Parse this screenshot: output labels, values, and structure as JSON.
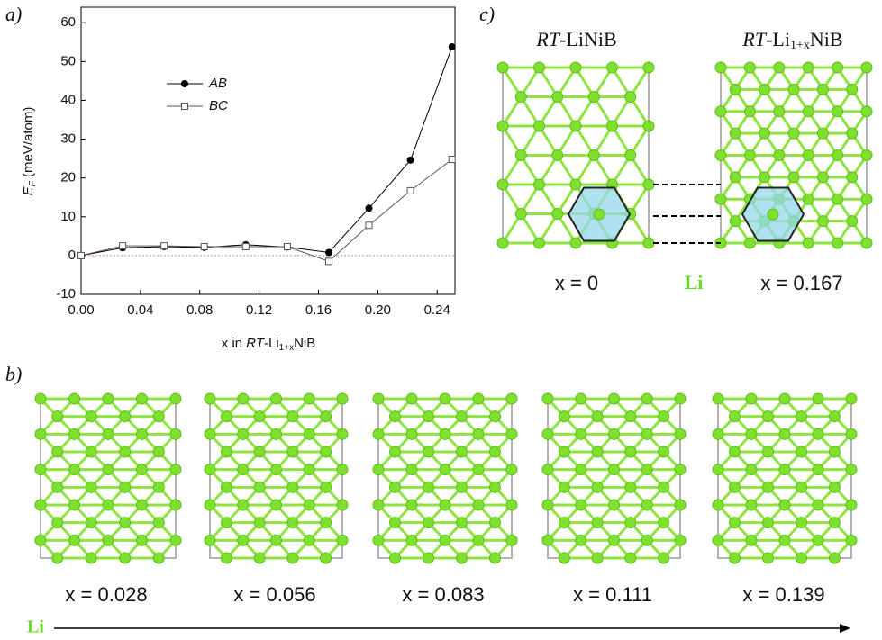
{
  "chart_data": {
    "type": "line",
    "xlabel": [
      "x in ",
      "RT",
      "-Li",
      "1+x",
      "NiB"
    ],
    "ylabel": [
      "E",
      "F",
      " (meV/atom)"
    ],
    "x": [
      0,
      0.028,
      0.056,
      0.083,
      0.111,
      0.139,
      0.167,
      0.194,
      0.222,
      0.25
    ],
    "series": [
      {
        "name": "AB",
        "color": "#000000",
        "marker": "circle",
        "values": [
          0,
          2.0,
          2.3,
          2.1,
          2.8,
          2.2,
          0.8,
          12.2,
          24.6,
          53.8
        ]
      },
      {
        "name": "BC",
        "color": "#555555",
        "marker": "square",
        "values": [
          0,
          2.5,
          2.5,
          2.3,
          2.3,
          2.3,
          -1.5,
          7.8,
          16.7,
          24.8
        ]
      }
    ],
    "xlim": [
      0,
      0.252
    ],
    "ylim": [
      -10,
      64
    ],
    "xticks": [
      {
        "value": 0,
        "label": "0.00"
      },
      0.04,
      0.08,
      0.12,
      0.16,
      {
        "value": 0.2,
        "label": "0.20"
      },
      0.24
    ],
    "yticks": [
      -10,
      0,
      10,
      20,
      30,
      40,
      50,
      60
    ]
  },
  "panels": {
    "a": "a)",
    "b": {
      "label": "b)",
      "captions": [
        "x = 0.028",
        "x = 0.056",
        "x = 0.083",
        "x = 0.111",
        "x = 0.139"
      ],
      "arrow_label": "Li"
    },
    "c": {
      "label": "c)",
      "left_title": [
        "RT",
        "-LiNiB"
      ],
      "right_title": [
        "RT",
        "-Li",
        "1+x",
        "NiB"
      ],
      "left_caption": "x = 0",
      "middle_label": "Li",
      "right_caption": "x = 0.167"
    }
  }
}
